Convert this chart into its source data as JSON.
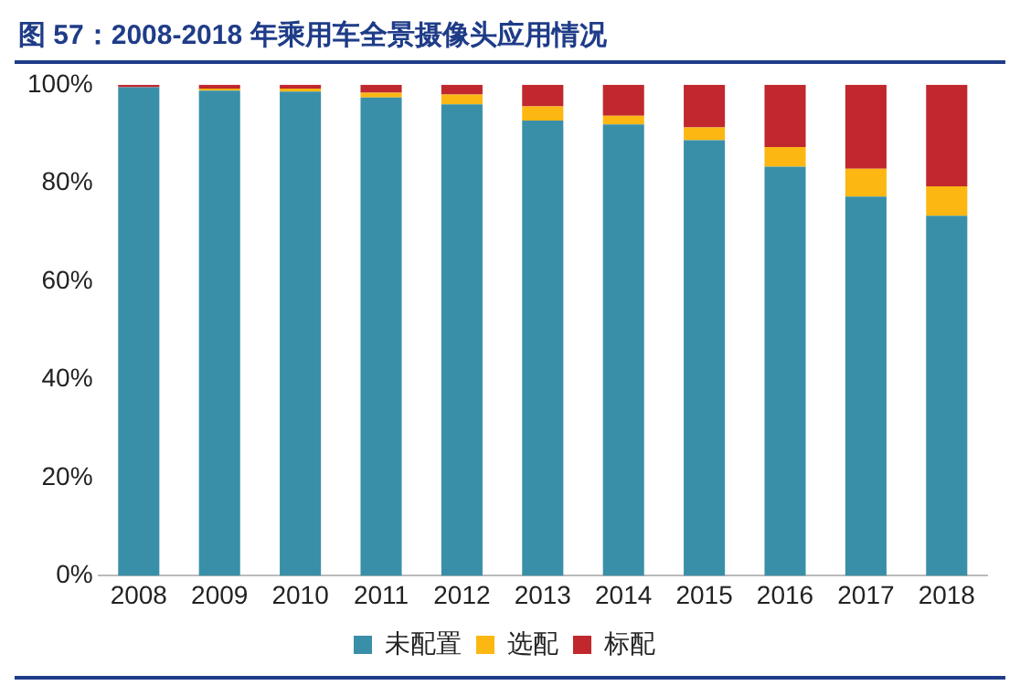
{
  "chart_data": {
    "type": "bar",
    "title": "图 57：2008-2018 年乘用车全景摄像头应用情况",
    "stacked": true,
    "categories": [
      "2008",
      "2009",
      "2010",
      "2011",
      "2012",
      "2013",
      "2014",
      "2015",
      "2016",
      "2017",
      "2018"
    ],
    "series": [
      {
        "name": "未配置",
        "color": "#3a8fa8",
        "values": [
          99.5,
          98.8,
          98.6,
          97.4,
          96.0,
          92.7,
          91.9,
          88.7,
          83.3,
          77.2,
          73.3
        ]
      },
      {
        "name": "选配",
        "color": "#fcb712",
        "values": [
          0,
          0.4,
          0.6,
          1.0,
          2.0,
          2.9,
          1.8,
          2.6,
          4.0,
          5.7,
          6.0
        ]
      },
      {
        "name": "标配",
        "color": "#c0282e",
        "values": [
          0.5,
          0.8,
          0.8,
          1.6,
          2.0,
          4.4,
          6.3,
          8.7,
          12.7,
          17.1,
          20.7
        ]
      }
    ],
    "ylim": [
      0,
      100
    ],
    "yticks": [
      {
        "value": 0,
        "label": "0%"
      },
      {
        "value": 20,
        "label": "20%"
      },
      {
        "value": 40,
        "label": "40%"
      },
      {
        "value": 60,
        "label": "60%"
      },
      {
        "value": 80,
        "label": "80%"
      },
      {
        "value": 100,
        "label": "100%"
      }
    ],
    "grid": false,
    "legend": "bottom"
  }
}
